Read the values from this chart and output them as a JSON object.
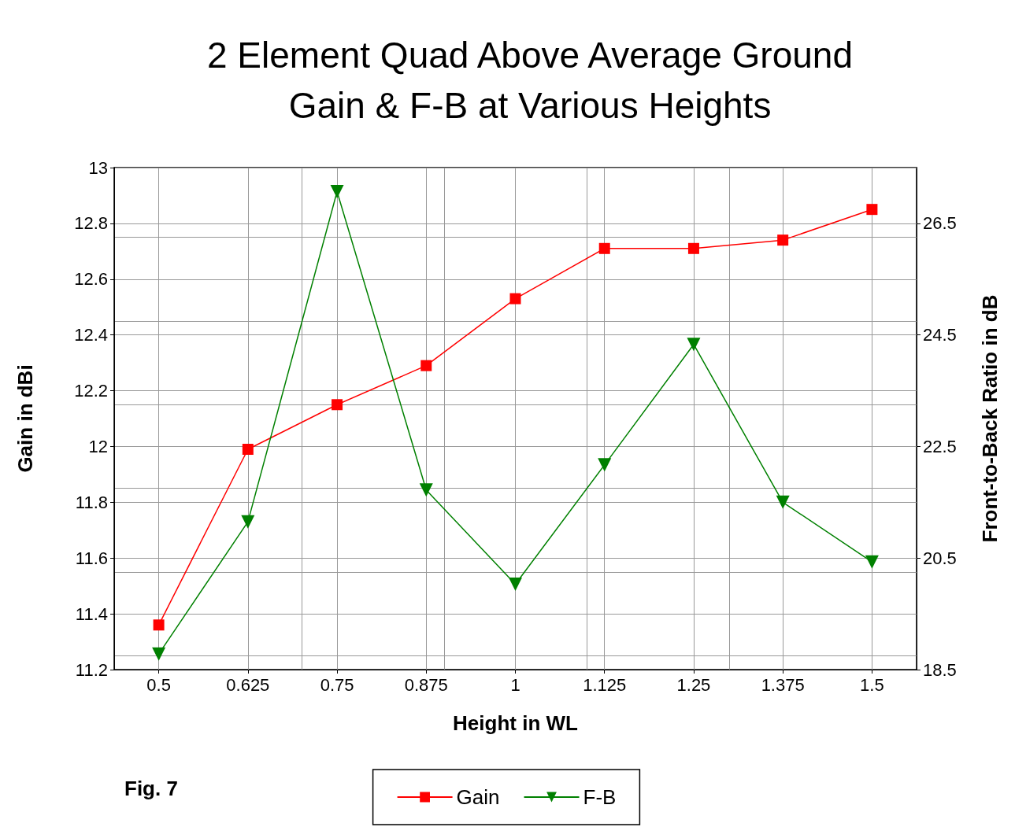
{
  "chart_data": {
    "type": "line",
    "title": "2 Element Quad Above Average Ground\nGain & F-B at Various Heights",
    "xlabel": "Height in WL",
    "ylabel": "Gain in dBi",
    "y2label": "Front-to-Back Ratio in dB",
    "x": [
      0.5,
      0.625,
      0.75,
      0.875,
      1,
      1.125,
      1.25,
      1.375,
      1.5
    ],
    "xlim": [
      0.4375,
      1.5625
    ],
    "xticks": [
      0.5,
      0.625,
      0.75,
      0.875,
      1,
      1.125,
      1.25,
      1.375,
      1.5
    ],
    "ylim": [
      11.2,
      13
    ],
    "yticks": [
      11.2,
      11.4,
      11.6,
      11.8,
      12,
      12.2,
      12.4,
      12.6,
      12.8,
      13
    ],
    "y2lim": [
      18.5,
      27.5
    ],
    "y2ticks": [
      18.5,
      20.5,
      22.5,
      24.5,
      26.5
    ],
    "series": [
      {
        "name": "Gain",
        "color": "#ff0000",
        "marker": "square",
        "values": [
          11.36,
          11.99,
          12.15,
          12.29,
          12.53,
          12.71,
          12.71,
          12.74,
          12.85
        ]
      },
      {
        "name": "F-B",
        "color": "#008000",
        "marker": "triangle",
        "axis": "y2",
        "values": [
          18.78,
          21.15,
          27.07,
          21.72,
          20.03,
          22.17,
          24.33,
          21.5,
          20.43
        ]
      }
    ],
    "grid": true,
    "legend": "bottom",
    "line_style": "solid",
    "annotations": [
      "Fig. 7"
    ]
  }
}
